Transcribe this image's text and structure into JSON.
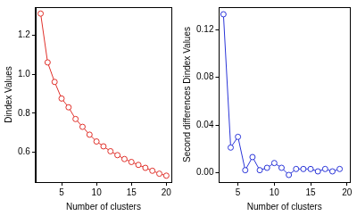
{
  "chart_data": [
    {
      "type": "line",
      "x_label": "Number of clusters",
      "y_label": "Dindex Values",
      "x": [
        2,
        3,
        4,
        5,
        6,
        7,
        8,
        9,
        10,
        11,
        12,
        13,
        14,
        15,
        16,
        17,
        18,
        19,
        20
      ],
      "values": [
        1.31,
        1.06,
        0.96,
        0.875,
        0.83,
        0.77,
        0.73,
        0.69,
        0.655,
        0.63,
        0.605,
        0.585,
        0.565,
        0.55,
        0.535,
        0.52,
        0.505,
        0.49,
        0.48
      ],
      "color": "#e0302a",
      "marker": "circle",
      "line_style": "solid",
      "grid": false,
      "xlim": [
        1.28,
        20.72
      ],
      "xticks": [
        5,
        10,
        15,
        20
      ],
      "ylim": [
        0.447,
        1.343
      ],
      "yticks": [
        0.6,
        0.8,
        {
          "value": 1,
          "label": "1.0"
        },
        1.2
      ]
    },
    {
      "type": "line",
      "x_label": "Number of clusters",
      "y_label": "Second differences Dindex Values",
      "x": [
        3,
        4,
        5,
        6,
        7,
        8,
        9,
        10,
        11,
        12,
        13,
        14,
        15,
        16,
        17,
        18,
        19
      ],
      "values": [
        0.133,
        0.021,
        0.03,
        0.002,
        0.013,
        0.002,
        0.004,
        0.008,
        0.004,
        -0.002,
        0.003,
        0.003,
        0.003,
        0.001,
        0.003,
        0.001,
        0.003
      ],
      "color": "#2a35d8",
      "marker": "circle",
      "line_style": "solid",
      "grid": false,
      "xlim": [
        2.4,
        20.4
      ],
      "xticks": [
        5,
        10,
        15,
        20
      ],
      "ylim": [
        -0.008,
        0.139
      ],
      "yticks": [
        {
          "value": 0,
          "label": "0.00"
        },
        {
          "value": 0.04,
          "label": "0.04"
        },
        {
          "value": 0.08,
          "label": "0.08"
        },
        {
          "value": 0.12,
          "label": "0.12"
        }
      ]
    }
  ]
}
